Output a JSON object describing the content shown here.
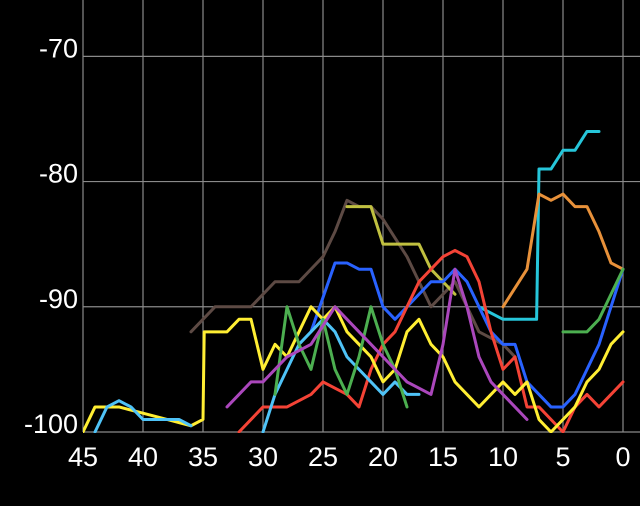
{
  "chart_data": {
    "type": "line",
    "xlim": [
      45,
      0
    ],
    "xticks": [
      45,
      40,
      35,
      30,
      25,
      20,
      15,
      10,
      5,
      0
    ],
    "ylim": [
      -100,
      -65.5
    ],
    "yticks": [
      -70,
      -80,
      -90,
      -100
    ],
    "grid": true,
    "series": [
      {
        "color": "#26c6da",
        "x": [
          12,
          10,
          8,
          7.2,
          7,
          6,
          5,
          4,
          3,
          2
        ],
        "values": [
          -90,
          -91,
          -91,
          -91,
          -79,
          -79,
          -77.5,
          -77.5,
          -76,
          -76
        ]
      },
      {
        "color": "#e8913a",
        "x": [
          10,
          8,
          7,
          6,
          5,
          4,
          3,
          2,
          1,
          0
        ],
        "values": [
          -90,
          -87,
          -81,
          -81.5,
          -81,
          -82,
          -82,
          -84,
          -86.5,
          -87
        ]
      },
      {
        "color": "#5d4a44",
        "x": [
          36,
          34,
          31,
          29,
          27,
          25,
          24,
          23,
          22,
          21,
          20,
          18,
          16,
          14,
          12,
          10,
          9
        ],
        "values": [
          -92,
          -90,
          -90,
          -88,
          -88,
          -86,
          -84,
          -81.5,
          -82,
          -82,
          -83,
          -86,
          -90,
          -88,
          -92,
          -93,
          -94
        ]
      },
      {
        "color": "#c0c040",
        "x": [
          23,
          22,
          21,
          20,
          19,
          18,
          17,
          16,
          15,
          14
        ],
        "values": [
          -82,
          -82,
          -82,
          -85,
          -85,
          -85,
          -85,
          -87,
          -88,
          -89
        ]
      },
      {
        "color": "#2962ff",
        "x": [
          26,
          24,
          23,
          22,
          21,
          20,
          19,
          18,
          17,
          16,
          15,
          14,
          13,
          12,
          11,
          10,
          9,
          8,
          7,
          6,
          5,
          4,
          3,
          2,
          1,
          0
        ],
        "values": [
          -92,
          -86.5,
          -86.5,
          -87,
          -87,
          -90,
          -91,
          -90,
          -89,
          -88,
          -88,
          -87,
          -88,
          -90,
          -92,
          -93,
          -93,
          -96,
          -97,
          -98,
          -98,
          -97,
          -95,
          -93,
          -90,
          -87
        ]
      },
      {
        "color": "#f44336",
        "x": [
          32,
          30,
          28,
          26,
          25,
          23,
          22,
          21,
          20,
          19,
          18,
          17,
          16,
          15,
          14,
          13,
          12,
          11,
          10,
          9,
          8,
          7,
          6,
          5,
          4,
          3,
          2,
          1,
          0
        ],
        "values": [
          -100,
          -98,
          -98,
          -97,
          -96,
          -97,
          -98,
          -95,
          -93,
          -92,
          -90,
          -88,
          -87,
          -86,
          -85.5,
          -86,
          -88,
          -92,
          -95,
          -94,
          -98,
          -98,
          -99,
          -100,
          -98,
          -97,
          -98,
          -97,
          -96
        ]
      },
      {
        "color": "#ffee33",
        "x": [
          45,
          44,
          42,
          40,
          38,
          36,
          35,
          34.9,
          33,
          32,
          31,
          30,
          29,
          28,
          27,
          26,
          25,
          24,
          23,
          22,
          21,
          20,
          19,
          18,
          17,
          16,
          15,
          14,
          13,
          12,
          11,
          10,
          9,
          8,
          7,
          6,
          5,
          4,
          3,
          2,
          1,
          0
        ],
        "values": [
          -100,
          -98,
          -98,
          -98.5,
          -99,
          -99.5,
          -99,
          -92,
          -92,
          -91,
          -91,
          -95,
          -93,
          -94,
          -92,
          -90,
          -91,
          -90,
          -92,
          -93,
          -94,
          -96,
          -95,
          -92,
          -91,
          -93,
          -94,
          -96,
          -97,
          -98,
          -97,
          -96,
          -97,
          -96,
          -99,
          -100,
          -99,
          -98,
          -96,
          -95,
          -93,
          -92
        ]
      },
      {
        "color": "#4fc3f7",
        "x": [
          44,
          43,
          42,
          41,
          40,
          39,
          38,
          37,
          36,
          null,
          30,
          29,
          28,
          27,
          26,
          25,
          24,
          23,
          22,
          21,
          20,
          19,
          18,
          17
        ],
        "values": [
          -100,
          -98,
          -97.5,
          -98,
          -99,
          -99,
          -99,
          -99,
          -99.5,
          null,
          -100,
          -97,
          -95,
          -93,
          -92,
          -91,
          -92,
          -94,
          -95,
          -96,
          -97,
          -96,
          -97,
          -97
        ]
      },
      {
        "color": "#4caf50",
        "x": [
          29,
          28,
          27,
          26,
          25,
          24,
          23,
          22,
          21,
          20,
          19,
          18,
          null,
          5,
          3,
          2,
          1,
          0
        ],
        "values": [
          -97,
          -90,
          -93,
          -95,
          -91,
          -95,
          -97,
          -94,
          -90,
          -93,
          -95,
          -98,
          null,
          -92,
          -92,
          -91,
          -89,
          -87
        ]
      },
      {
        "color": "#ab47bc",
        "x": [
          33,
          31,
          30,
          28,
          26,
          24,
          22,
          20,
          18,
          16,
          15,
          14,
          13,
          12,
          11,
          10,
          9,
          8
        ],
        "values": [
          -98,
          -96,
          -96,
          -94,
          -93,
          -90,
          -92,
          -94,
          -96,
          -97,
          -93,
          -87,
          -90,
          -94,
          -96,
          -97,
          -98,
          -99
        ]
      }
    ]
  }
}
